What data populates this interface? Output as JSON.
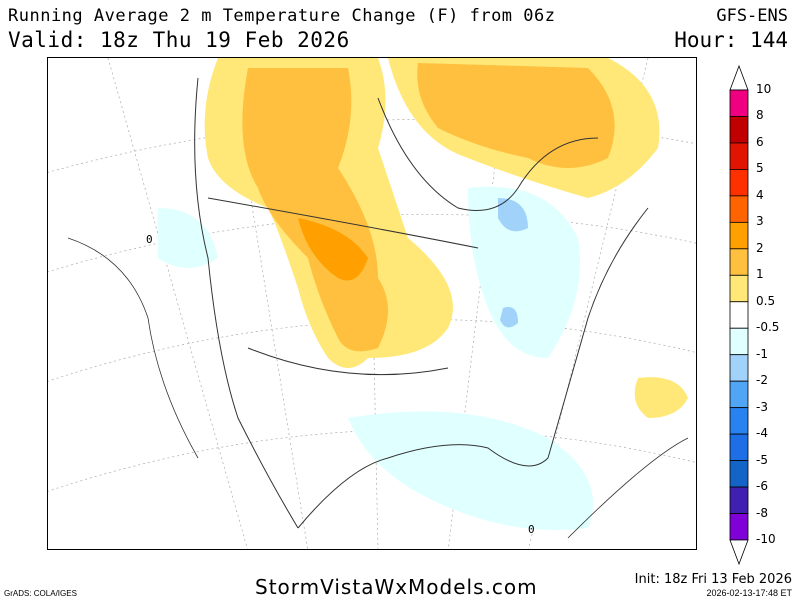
{
  "header": {
    "title": "Running Average 2 m Temperature Change (F) from 06z",
    "model": "GFS-ENS",
    "valid": "Valid: 18z Thu 19 Feb 2026",
    "hour": "Hour: 144"
  },
  "map": {
    "region": "North America",
    "contour_label": "0",
    "features": [
      "warm anomaly northern Plains/central Canada",
      "warm anomaly Hudson Bay/Quebec",
      "cool anomaly Great Lakes/Ohio Valley",
      "cool anomaly Gulf of Mexico/Southeast"
    ]
  },
  "colorbar": {
    "labels": [
      "10",
      "8",
      "6",
      "5",
      "4",
      "3",
      "2",
      "1",
      "0.5",
      "-0.5",
      "-1",
      "-2",
      "-3",
      "-4",
      "-5",
      "-6",
      "-8",
      "-10"
    ],
    "colors": [
      "#f00080",
      "#c00000",
      "#e01400",
      "#ff3000",
      "#ff6400",
      "#ffa000",
      "#ffc040",
      "#ffe878",
      "#ffffff",
      "#e0ffff",
      "#a0d2fa",
      "#50a5f5",
      "#2882f0",
      "#1e6ee6",
      "#1464c8",
      "#4020b0",
      "#8000d8"
    ],
    "top_arrow_color": "#ffffff",
    "bottom_arrow_color": "#ffffff"
  },
  "footer": {
    "site": "StormVistaWxModels.com",
    "grads": "GrADS: COLA/IGES",
    "init": "Init: 18z Fri 13 Feb 2026",
    "stamp": "2026-02-13-17:48 ET"
  }
}
